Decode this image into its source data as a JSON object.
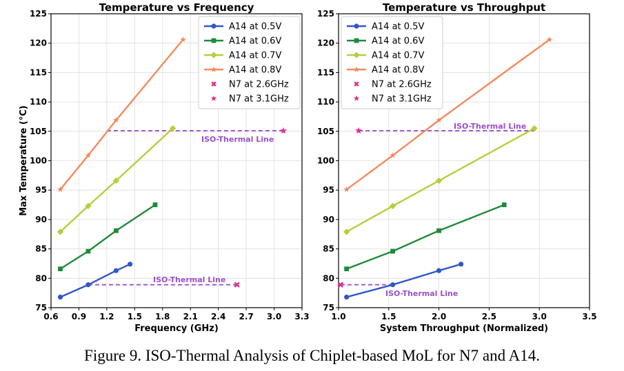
{
  "caption": "Figure 9.  ISO-Thermal Analysis of Chiplet-based MoL for N7 and A14.",
  "colors": {
    "a14_05": "#2f57c9",
    "a14_06": "#1f8a3a",
    "a14_07": "#b9cc3c",
    "a14_08": "#f28a5c",
    "n7": "#e0338f",
    "iso_line": "#9b4fc9"
  },
  "chart_data": [
    {
      "type": "line",
      "title": "Temperature vs Frequency",
      "xlabel": "Frequency (GHz)",
      "ylabel": "Max Temperature (°C)",
      "xlim": [
        0.6,
        3.3
      ],
      "ylim": [
        75,
        125
      ],
      "xticks": [
        "0.6",
        "0.9",
        "1.2",
        "1.5",
        "1.8",
        "2.1",
        "2.4",
        "2.7",
        "3.0",
        "3.3"
      ],
      "yticks": [
        "75",
        "80",
        "85",
        "90",
        "95",
        "100",
        "105",
        "110",
        "115",
        "120",
        "125"
      ],
      "grid": true,
      "legend_position": "top-right",
      "series": [
        {
          "name": "A14 at 0.5V",
          "marker": "circle",
          "color": "#2f57c9",
          "x": [
            0.7,
            1.0,
            1.3,
            1.45
          ],
          "y": [
            76.8,
            78.9,
            81.3,
            82.4
          ]
        },
        {
          "name": "A14 at 0.6V",
          "marker": "square",
          "color": "#1f8a3a",
          "x": [
            0.7,
            1.0,
            1.3,
            1.72
          ],
          "y": [
            81.6,
            84.6,
            88.1,
            92.5
          ]
        },
        {
          "name": "A14 at 0.7V",
          "marker": "diamond",
          "color": "#b9cc3c",
          "x": [
            0.7,
            1.0,
            1.3,
            1.91
          ],
          "y": [
            87.9,
            92.3,
            96.6,
            105.5
          ]
        },
        {
          "name": "A14 at 0.8V",
          "marker": "star",
          "color": "#f28a5c",
          "x": [
            0.7,
            1.0,
            1.3,
            2.02
          ],
          "y": [
            95.1,
            100.9,
            106.9,
            120.6
          ]
        },
        {
          "name": "N7 at 2.6GHz",
          "marker": "x",
          "color": "#e0338f",
          "x": [
            2.6
          ],
          "y": [
            78.9
          ]
        },
        {
          "name": "N7 at 3.1GHz",
          "marker": "star",
          "color": "#e0338f",
          "x": [
            3.1
          ],
          "y": [
            105.1
          ]
        }
      ],
      "iso_lines": [
        {
          "label": "ISO-Thermal Line",
          "y": 78.9,
          "x_range": [
            1.0,
            2.6
          ]
        },
        {
          "label": "ISO-Thermal Line",
          "y": 105.1,
          "x_range": [
            1.2,
            3.1
          ]
        }
      ]
    },
    {
      "type": "line",
      "title": "Temperature vs Throughput",
      "xlabel": "System Throughput (Normalized)",
      "ylabel": "",
      "xlim": [
        1.0,
        3.5
      ],
      "ylim": [
        75,
        125
      ],
      "xticks": [
        "1.0",
        "1.5",
        "2.0",
        "2.5",
        "3.0",
        "3.5"
      ],
      "yticks": [
        "75",
        "80",
        "85",
        "90",
        "95",
        "100",
        "105",
        "110",
        "115",
        "120",
        "125"
      ],
      "grid": true,
      "legend_position": "top-left",
      "series": [
        {
          "name": "A14 at 0.5V",
          "marker": "circle",
          "color": "#2f57c9",
          "x": [
            1.08,
            1.54,
            2.0,
            2.22
          ],
          "y": [
            76.8,
            78.9,
            81.3,
            82.4
          ]
        },
        {
          "name": "A14 at 0.6V",
          "marker": "square",
          "color": "#1f8a3a",
          "x": [
            1.08,
            1.54,
            2.0,
            2.65
          ],
          "y": [
            81.6,
            84.6,
            88.1,
            92.5
          ]
        },
        {
          "name": "A14 at 0.7V",
          "marker": "diamond",
          "color": "#b9cc3c",
          "x": [
            1.08,
            1.54,
            2.0,
            2.95
          ],
          "y": [
            87.9,
            92.3,
            96.6,
            105.5
          ]
        },
        {
          "name": "A14 at 0.8V",
          "marker": "star",
          "color": "#f28a5c",
          "x": [
            1.08,
            1.54,
            2.0,
            3.1
          ],
          "y": [
            95.1,
            100.9,
            106.9,
            120.6
          ]
        },
        {
          "name": "N7 at 2.6GHz",
          "marker": "x",
          "color": "#e0338f",
          "x": [
            1.02
          ],
          "y": [
            78.9
          ]
        },
        {
          "name": "N7 at 3.1GHz",
          "marker": "star",
          "color": "#e0338f",
          "x": [
            1.2
          ],
          "y": [
            105.1
          ]
        }
      ],
      "iso_lines": [
        {
          "label": "ISO-Thermal Line",
          "y": 78.9,
          "x_range": [
            1.02,
            1.54
          ]
        },
        {
          "label": "ISO-Thermal Line",
          "y": 105.1,
          "x_range": [
            1.2,
            2.95
          ]
        }
      ]
    }
  ]
}
